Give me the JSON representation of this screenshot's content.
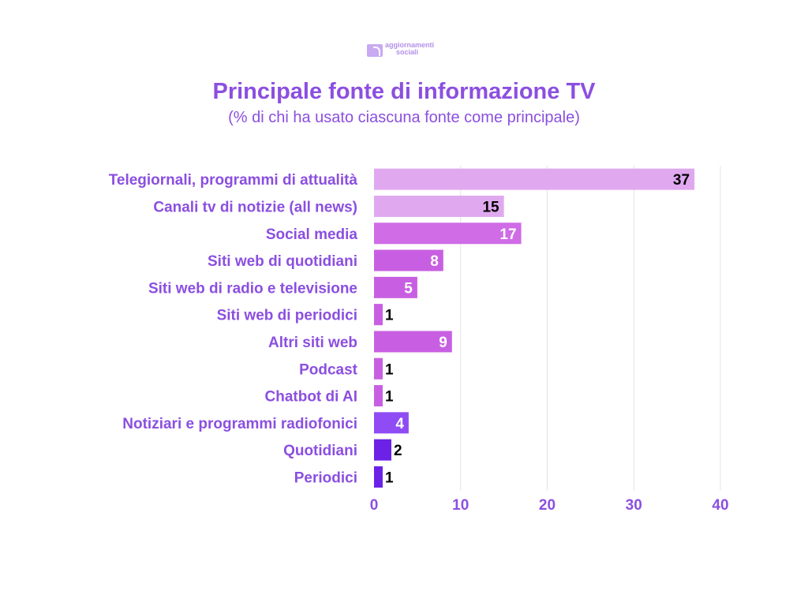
{
  "logo": {
    "line1": "aggiornamenti",
    "line2": "sociali"
  },
  "chart_data": {
    "type": "bar",
    "orientation": "horizontal",
    "title": "Principale fonte di informazione TV",
    "subtitle": "(% di chi ha usato ciascuna fonte come principale)",
    "categories": [
      "Telegiornali, programmi di attualità",
      "Canali tv di notizie (all news)",
      "Social media",
      "Siti web di quotidiani",
      "Siti web di radio e televisione",
      "Siti web di periodici",
      "Altri siti web",
      "Podcast",
      "Chatbot di AI",
      "Notiziari e programmi radiofonici",
      "Quotidiani",
      "Periodici"
    ],
    "values": [
      37,
      15,
      17,
      8,
      5,
      1,
      9,
      1,
      1,
      4,
      2,
      1
    ],
    "bar_colors": [
      "#e0a9ef",
      "#e0a9ef",
      "#cf6ce6",
      "#c85fe2",
      "#c85fe2",
      "#c85fe2",
      "#c85fe2",
      "#c85fe2",
      "#c85fe2",
      "#8f4cf5",
      "#6b21e6",
      "#6b21e6"
    ],
    "label_colors": [
      "#000000",
      "#000000",
      "#ffffff",
      "#ffffff",
      "#ffffff",
      "#000000",
      "#ffffff",
      "#000000",
      "#000000",
      "#ffffff",
      "#000000",
      "#000000"
    ],
    "xlim": [
      0,
      40
    ],
    "xticks": [
      0,
      10,
      20,
      30,
      40
    ],
    "grid": true,
    "colors": {
      "text": "#8b4fe0",
      "grid": "#e4e4e4"
    }
  }
}
